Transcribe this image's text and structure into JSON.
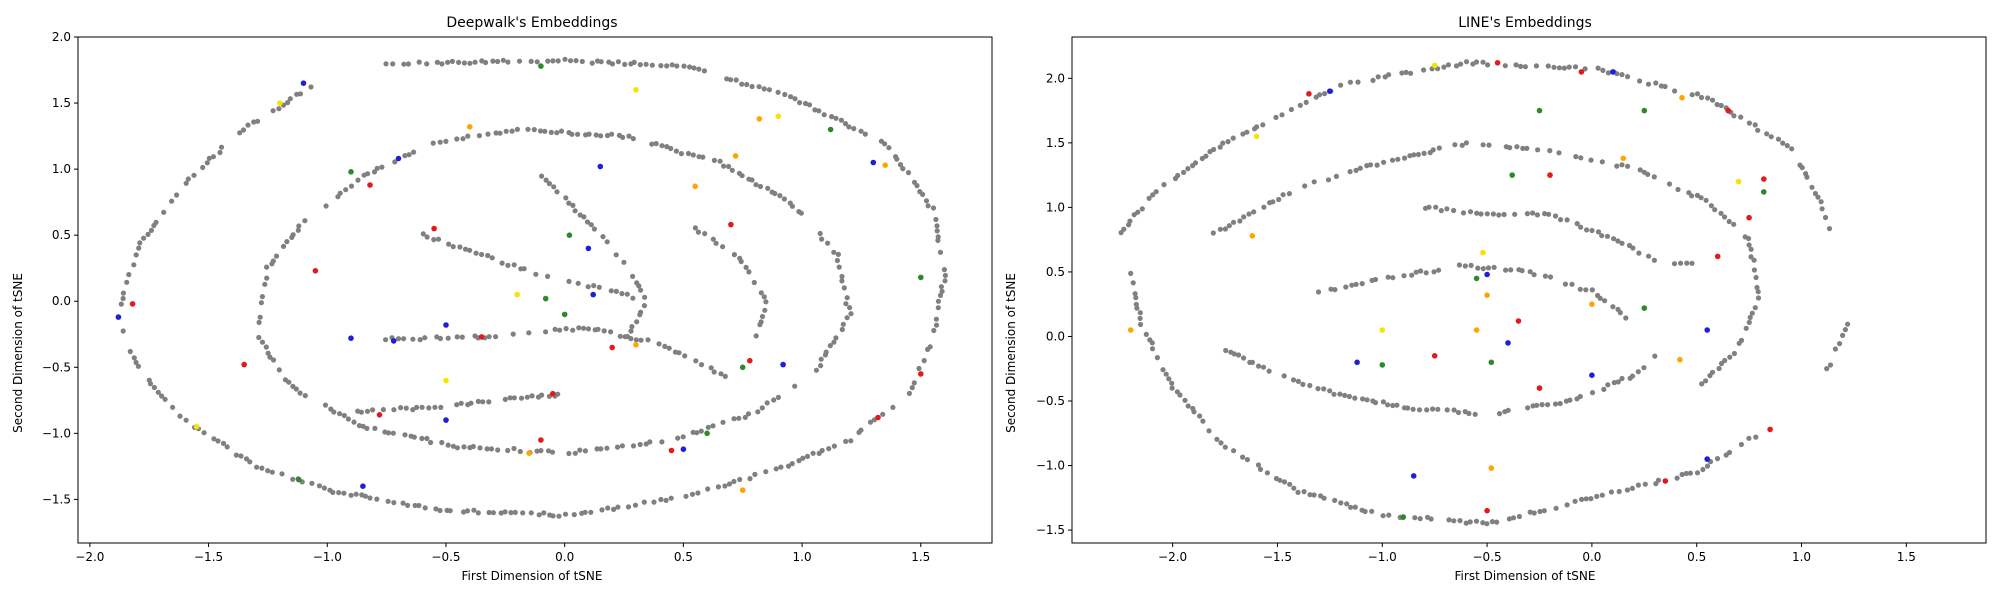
{
  "chart_data": [
    {
      "type": "scatter",
      "title": "Deepwalk's Embeddings",
      "xlabel": "First Dimension of tSNE",
      "ylabel": "Second Dimension of tSNE",
      "xlim": [
        -2.05,
        1.8
      ],
      "ylim": [
        -1.83,
        2.0
      ],
      "xticks": [
        -2.0,
        -1.5,
        -1.0,
        -0.5,
        0.0,
        0.5,
        1.0,
        1.5
      ],
      "xtick_labels": [
        "−2.0",
        "−1.5",
        "−1.0",
        "−0.5",
        "0.0",
        "0.5",
        "1.0",
        "1.5"
      ],
      "yticks": [
        -1.5,
        -1.0,
        -0.5,
        0.0,
        0.5,
        1.0,
        1.5,
        2.0
      ],
      "ytick_labels": [
        "−1.5",
        "−1.0",
        "−0.5",
        "0.0",
        "0.5",
        "1.0",
        "1.5",
        "2.0"
      ],
      "grid": false,
      "colors": {
        "gray": "#808080",
        "red": "#e31a1c",
        "blue": "#1f1fd6",
        "green": "#2c8a2c",
        "yellow": "#f2e600",
        "orange": "#ffa500"
      },
      "series": [
        {
          "color": "gray",
          "segments": [
            [
              [
                -0.75,
                1.8
              ],
              [
                0.0,
                1.82
              ],
              [
                0.5,
                1.78
              ],
              [
                0.95,
                1.55
              ],
              [
                1.35,
                1.2
              ],
              [
                1.55,
                0.7
              ],
              [
                1.6,
                0.2
              ],
              [
                1.55,
                -0.3
              ],
              [
                1.45,
                -0.7
              ],
              [
                1.2,
                -1.05
              ],
              [
                0.85,
                -1.3
              ],
              [
                0.45,
                -1.5
              ],
              [
                0.0,
                -1.62
              ],
              [
                -0.5,
                -1.58
              ],
              [
                -0.95,
                -1.45
              ],
              [
                -1.3,
                -1.25
              ],
              [
                -1.6,
                -0.9
              ],
              [
                -1.8,
                -0.5
              ],
              [
                -1.88,
                -0.1
              ],
              [
                -1.8,
                0.4
              ],
              [
                -1.6,
                0.9
              ],
              [
                -1.35,
                1.3
              ],
              [
                -1.05,
                1.65
              ]
            ],
            [
              [
                -0.85,
                0.95
              ],
              [
                -0.55,
                1.2
              ],
              [
                -0.2,
                1.3
              ],
              [
                0.25,
                1.25
              ],
              [
                0.65,
                1.05
              ],
              [
                0.95,
                0.75
              ],
              [
                1.15,
                0.35
              ],
              [
                1.2,
                -0.1
              ],
              [
                1.05,
                -0.55
              ],
              [
                0.8,
                -0.85
              ],
              [
                0.45,
                -1.05
              ],
              [
                0.0,
                -1.15
              ],
              [
                -0.45,
                -1.1
              ],
              [
                -0.85,
                -0.95
              ],
              [
                -1.15,
                -0.65
              ],
              [
                -1.3,
                -0.25
              ],
              [
                -1.25,
                0.25
              ],
              [
                -1.1,
                0.6
              ],
              [
                -0.85,
                0.95
              ]
            ],
            [
              [
                -0.75,
                -0.28
              ],
              [
                -0.45,
                -0.28
              ],
              [
                -0.2,
                -0.25
              ],
              [
                0.1,
                -0.2
              ],
              [
                0.35,
                -0.3
              ],
              [
                0.55,
                -0.45
              ],
              [
                0.7,
                -0.6
              ]
            ],
            [
              [
                -0.9,
                -0.84
              ],
              [
                -0.55,
                -0.8
              ],
              [
                -0.3,
                -0.75
              ],
              [
                0.0,
                -0.7
              ]
            ],
            [
              [
                -0.6,
                0.5
              ],
              [
                -0.35,
                0.35
              ],
              [
                -0.1,
                0.2
              ],
              [
                0.15,
                0.1
              ],
              [
                0.35,
                0.0
              ]
            ],
            [
              [
                -0.1,
                0.95
              ],
              [
                0.1,
                0.6
              ],
              [
                0.25,
                0.3
              ],
              [
                0.35,
                0.0
              ],
              [
                0.25,
                -0.3
              ]
            ],
            [
              [
                0.55,
                0.55
              ],
              [
                0.75,
                0.3
              ],
              [
                0.85,
                0.0
              ],
              [
                0.8,
                -0.3
              ]
            ]
          ]
        },
        {
          "color": "red",
          "points": [
            [
              -1.82,
              -0.02
            ],
            [
              -1.05,
              0.23
            ],
            [
              -0.82,
              0.88
            ],
            [
              -0.55,
              0.55
            ],
            [
              -0.35,
              -0.27
            ],
            [
              -0.78,
              -0.86
            ],
            [
              -1.35,
              -0.48
            ],
            [
              -0.05,
              -0.7
            ],
            [
              -0.1,
              -1.05
            ],
            [
              0.2,
              -0.35
            ],
            [
              0.45,
              -1.13
            ],
            [
              0.7,
              0.58
            ],
            [
              0.78,
              -0.45
            ],
            [
              1.32,
              -0.88
            ],
            [
              1.5,
              -0.55
            ]
          ]
        },
        {
          "color": "blue",
          "points": [
            [
              -1.88,
              -0.12
            ],
            [
              -1.1,
              1.65
            ],
            [
              -0.7,
              1.08
            ],
            [
              -0.9,
              -0.28
            ],
            [
              -0.72,
              -0.3
            ],
            [
              -0.5,
              -0.18
            ],
            [
              -0.5,
              -0.9
            ],
            [
              -0.85,
              -1.4
            ],
            [
              0.15,
              1.02
            ],
            [
              0.1,
              0.4
            ],
            [
              0.12,
              0.05
            ],
            [
              0.5,
              -1.12
            ],
            [
              0.92,
              -0.48
            ],
            [
              1.3,
              1.05
            ]
          ]
        },
        {
          "color": "green",
          "points": [
            [
              -0.9,
              0.98
            ],
            [
              -0.1,
              1.78
            ],
            [
              0.02,
              0.5
            ],
            [
              -0.08,
              0.02
            ],
            [
              0.0,
              -0.1
            ],
            [
              0.6,
              -1.0
            ],
            [
              0.75,
              -0.5
            ],
            [
              1.12,
              1.3
            ],
            [
              1.5,
              0.18
            ],
            [
              -1.12,
              -1.35
            ]
          ]
        },
        {
          "color": "yellow",
          "points": [
            [
              -1.2,
              1.5
            ],
            [
              -1.55,
              -0.95
            ],
            [
              -0.5,
              -0.6
            ],
            [
              0.3,
              1.6
            ],
            [
              -0.2,
              0.05
            ],
            [
              0.9,
              1.4
            ]
          ]
        },
        {
          "color": "orange",
          "points": [
            [
              -0.4,
              1.32
            ],
            [
              0.72,
              1.1
            ],
            [
              0.3,
              -0.33
            ],
            [
              -0.15,
              -1.15
            ],
            [
              0.75,
              -1.43
            ],
            [
              1.35,
              1.03
            ],
            [
              0.55,
              0.87
            ],
            [
              0.82,
              1.38
            ]
          ]
        }
      ]
    },
    {
      "type": "scatter",
      "title": "LINE's Embeddings",
      "xlabel": "First Dimension of tSNE",
      "ylabel": "Second Dimension of tSNE",
      "xlim": [
        -2.48,
        1.88
      ],
      "ylim": [
        -1.6,
        2.32
      ],
      "xticks": [
        -2.0,
        -1.5,
        -1.0,
        -0.5,
        0.0,
        0.5,
        1.0,
        1.5
      ],
      "xtick_labels": [
        "−2.0",
        "−1.5",
        "−1.0",
        "−0.5",
        "0.0",
        "0.5",
        "1.0",
        "1.5"
      ],
      "yticks": [
        -1.5,
        -1.0,
        -0.5,
        0.0,
        0.5,
        1.0,
        1.5,
        2.0
      ],
      "ytick_labels": [
        "−1.5",
        "−1.0",
        "−0.5",
        "0.0",
        "0.5",
        "1.0",
        "1.5",
        "2.0"
      ],
      "grid": false,
      "colors": {
        "gray": "#808080",
        "red": "#e31a1c",
        "blue": "#1f1fd6",
        "green": "#2c8a2c",
        "yellow": "#f2e600",
        "orange": "#ffa500"
      },
      "series": [
        {
          "color": "gray",
          "segments": [
            [
              [
                -1.2,
                1.95
              ],
              [
                -0.6,
                2.12
              ],
              [
                0.0,
                2.08
              ],
              [
                0.55,
                1.85
              ],
              [
                0.95,
                1.45
              ],
              [
                1.1,
                1.0
              ],
              [
                1.15,
                0.75
              ]
            ],
            [
              [
                -2.2,
                0.5
              ],
              [
                -2.15,
                0.1
              ],
              [
                -2.0,
                -0.4
              ],
              [
                -1.75,
                -0.85
              ],
              [
                -1.4,
                -1.2
              ],
              [
                -1.0,
                -1.38
              ],
              [
                -0.5,
                -1.45
              ],
              [
                0.0,
                -1.25
              ],
              [
                0.5,
                -1.05
              ],
              [
                0.8,
                -0.75
              ]
            ],
            [
              [
                -2.25,
                0.8
              ],
              [
                -2.1,
                1.1
              ],
              [
                -1.8,
                1.45
              ],
              [
                -1.5,
                1.7
              ],
              [
                -1.2,
                1.95
              ]
            ],
            [
              [
                -1.8,
                0.8
              ],
              [
                -1.4,
                1.15
              ],
              [
                -1.0,
                1.35
              ],
              [
                -0.6,
                1.5
              ],
              [
                -0.2,
                1.45
              ],
              [
                0.2,
                1.3
              ],
              [
                0.55,
                1.05
              ],
              [
                0.75,
                0.75
              ],
              [
                0.8,
                0.3
              ],
              [
                0.7,
                -0.1
              ],
              [
                0.5,
                -0.4
              ]
            ],
            [
              [
                -1.75,
                -0.1
              ],
              [
                -1.5,
                -0.3
              ],
              [
                -1.2,
                -0.45
              ],
              [
                -0.9,
                -0.55
              ],
              [
                -0.5,
                -0.6
              ],
              [
                -0.1,
                -0.5
              ],
              [
                0.2,
                -0.3
              ],
              [
                0.35,
                -0.1
              ]
            ],
            [
              [
                -1.3,
                0.35
              ],
              [
                -1.0,
                0.45
              ],
              [
                -0.6,
                0.55
              ],
              [
                -0.3,
                0.5
              ],
              [
                0.0,
                0.35
              ],
              [
                0.2,
                0.1
              ]
            ],
            [
              [
                -0.8,
                1.0
              ],
              [
                -0.5,
                0.95
              ],
              [
                -0.2,
                0.95
              ],
              [
                0.1,
                0.75
              ],
              [
                0.3,
                0.6
              ],
              [
                0.5,
                0.55
              ]
            ],
            [
              [
                1.12,
                -0.25
              ],
              [
                1.27,
                0.25
              ]
            ]
          ]
        },
        {
          "color": "red",
          "points": [
            [
              -1.35,
              1.88
            ],
            [
              -0.45,
              2.12
            ],
            [
              -0.05,
              2.05
            ],
            [
              0.65,
              1.75
            ],
            [
              0.82,
              1.22
            ],
            [
              0.75,
              0.92
            ],
            [
              0.6,
              0.62
            ],
            [
              0.85,
              -0.72
            ],
            [
              0.35,
              -1.12
            ],
            [
              -0.5,
              -1.35
            ],
            [
              -0.75,
              -0.15
            ],
            [
              -0.35,
              0.12
            ],
            [
              -0.25,
              -0.4
            ],
            [
              -0.2,
              1.25
            ]
          ]
        },
        {
          "color": "blue",
          "points": [
            [
              -1.25,
              1.9
            ],
            [
              0.1,
              2.05
            ],
            [
              0.55,
              0.05
            ],
            [
              0.0,
              -0.3
            ],
            [
              -1.12,
              -0.2
            ],
            [
              -0.85,
              -1.08
            ],
            [
              0.55,
              -0.95
            ],
            [
              -0.5,
              0.48
            ],
            [
              -0.4,
              -0.05
            ]
          ]
        },
        {
          "color": "green",
          "points": [
            [
              -0.25,
              1.75
            ],
            [
              0.25,
              1.75
            ],
            [
              -0.38,
              1.25
            ],
            [
              -0.55,
              0.45
            ],
            [
              -0.48,
              -0.2
            ],
            [
              0.25,
              0.22
            ],
            [
              -1.0,
              -0.22
            ],
            [
              -0.9,
              -1.4
            ],
            [
              0.82,
              1.12
            ]
          ]
        },
        {
          "color": "yellow",
          "points": [
            [
              -1.6,
              1.55
            ],
            [
              -0.75,
              2.1
            ],
            [
              -1.0,
              0.05
            ],
            [
              0.7,
              1.2
            ],
            [
              -0.52,
              0.65
            ]
          ]
        },
        {
          "color": "orange",
          "points": [
            [
              -1.62,
              0.78
            ],
            [
              -2.2,
              0.05
            ],
            [
              0.43,
              1.85
            ],
            [
              0.15,
              1.38
            ],
            [
              -0.48,
              -1.02
            ],
            [
              -0.55,
              0.05
            ],
            [
              -0.5,
              0.32
            ],
            [
              0.42,
              -0.18
            ],
            [
              0.0,
              0.25
            ]
          ]
        }
      ]
    }
  ]
}
